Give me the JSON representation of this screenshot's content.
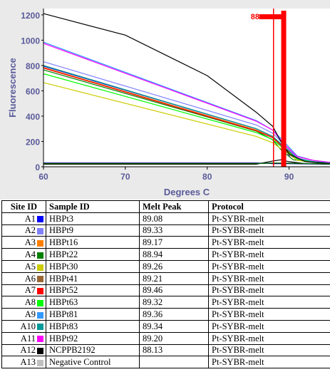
{
  "chart_data": {
    "type": "line",
    "title": "",
    "xlabel": "Degrees C",
    "ylabel": "Fluorescence",
    "xlim": [
      60,
      95
    ],
    "ylim": [
      0,
      1250
    ],
    "xticks": [
      60,
      70,
      80,
      90
    ],
    "yticks": [
      0,
      200,
      400,
      600,
      800,
      1000,
      1200
    ],
    "marker_label": "88",
    "marker_color": "#ff0000",
    "marker_lines": [
      88.1,
      89.3
    ],
    "background": "#eaeaea",
    "series": [
      {
        "color": "#0000ff",
        "values": [
          [
            60,
            795
          ],
          [
            86,
            300
          ],
          [
            88,
            240
          ],
          [
            89,
            170
          ],
          [
            90,
            90
          ],
          [
            92,
            45
          ],
          [
            95,
            25
          ]
        ]
      },
      {
        "color": "#8080ff",
        "values": [
          [
            60,
            830
          ],
          [
            86,
            330
          ],
          [
            88,
            265
          ],
          [
            89.5,
            170
          ],
          [
            91,
            70
          ],
          [
            93,
            40
          ],
          [
            95,
            30
          ]
        ]
      },
      {
        "color": "#ff8000",
        "values": [
          [
            60,
            785
          ],
          [
            86,
            290
          ],
          [
            88,
            232
          ],
          [
            89.3,
            140
          ],
          [
            91,
            60
          ],
          [
            93,
            40
          ],
          [
            95,
            30
          ]
        ]
      },
      {
        "color": "#008000",
        "values": [
          [
            60,
            765
          ],
          [
            86,
            282
          ],
          [
            88,
            212
          ],
          [
            89,
            135
          ],
          [
            90.5,
            55
          ],
          [
            93,
            35
          ],
          [
            95,
            25
          ]
        ]
      },
      {
        "color": "#cccc00",
        "values": [
          [
            60,
            665
          ],
          [
            86,
            240
          ],
          [
            88,
            190
          ],
          [
            89.5,
            120
          ],
          [
            91,
            50
          ],
          [
            93,
            35
          ],
          [
            95,
            25
          ]
        ]
      },
      {
        "color": "#996633",
        "values": [
          [
            60,
            800
          ],
          [
            86,
            300
          ],
          [
            88,
            240
          ],
          [
            89.3,
            155
          ],
          [
            91,
            60
          ],
          [
            93,
            40
          ],
          [
            95,
            30
          ]
        ]
      },
      {
        "color": "#ff0000",
        "values": [
          [
            60,
            780
          ],
          [
            86,
            285
          ],
          [
            88,
            230
          ],
          [
            89.5,
            150
          ],
          [
            91,
            60
          ],
          [
            93,
            40
          ],
          [
            95,
            30
          ]
        ]
      },
      {
        "color": "#00ff00",
        "values": [
          [
            60,
            735
          ],
          [
            86,
            270
          ],
          [
            88,
            215
          ],
          [
            89.4,
            140
          ],
          [
            91,
            60
          ],
          [
            93,
            40
          ],
          [
            95,
            30
          ]
        ]
      },
      {
        "color": "#3399ff",
        "values": [
          [
            60,
            985
          ],
          [
            86,
            365
          ],
          [
            88,
            290
          ],
          [
            89.5,
            190
          ],
          [
            91,
            85
          ],
          [
            93,
            50
          ],
          [
            95,
            35
          ]
        ]
      },
      {
        "color": "#009999",
        "values": [
          [
            60,
            800
          ],
          [
            86,
            300
          ],
          [
            88,
            240
          ],
          [
            89.4,
            160
          ],
          [
            91,
            65
          ],
          [
            93,
            40
          ],
          [
            95,
            30
          ]
        ]
      },
      {
        "color": "#ff00ff",
        "values": [
          [
            60,
            975
          ],
          [
            86,
            360
          ],
          [
            88,
            290
          ],
          [
            89.3,
            185
          ],
          [
            91,
            80
          ],
          [
            93,
            50
          ],
          [
            95,
            35
          ]
        ]
      },
      {
        "color": "#000000",
        "values": [
          [
            60,
            1210
          ],
          [
            70,
            1040
          ],
          [
            80,
            720
          ],
          [
            86,
            430
          ],
          [
            88,
            320
          ],
          [
            89,
            200
          ],
          [
            90,
            100
          ],
          [
            92,
            40
          ],
          [
            95,
            25
          ]
        ]
      },
      {
        "color": "#000000",
        "values": [
          [
            60,
            20
          ],
          [
            86,
            20
          ],
          [
            88,
            45
          ],
          [
            89,
            55
          ],
          [
            90,
            40
          ],
          [
            92,
            25
          ],
          [
            95,
            20
          ]
        ]
      },
      {
        "color": "#000080",
        "values": [
          [
            60,
            30
          ],
          [
            86,
            30
          ],
          [
            88,
            25
          ],
          [
            90,
            25
          ],
          [
            95,
            20
          ]
        ]
      },
      {
        "color": "#006600",
        "values": [
          [
            60,
            25
          ],
          [
            86,
            25
          ],
          [
            88,
            30
          ],
          [
            90,
            28
          ],
          [
            95,
            22
          ]
        ]
      }
    ]
  },
  "table": {
    "headers": [
      "Site ID",
      "Sample ID",
      "Melt Peak",
      "Protocol"
    ],
    "rows": [
      {
        "site": "A1",
        "color": "#0000ff",
        "sample": "HBPt3",
        "peak": "89.08",
        "protocol": "Pt-SYBR-melt"
      },
      {
        "site": "A2",
        "color": "#8080ff",
        "sample": "HBPt9",
        "peak": "89.33",
        "protocol": "Pt-SYBR-melt"
      },
      {
        "site": "A3",
        "color": "#ff8000",
        "sample": "HBPt16",
        "peak": "89.17",
        "protocol": "Pt-SYBR-melt"
      },
      {
        "site": "A4",
        "color": "#008000",
        "sample": "HBPt22",
        "peak": "88.94",
        "protocol": "Pt-SYBR-melt"
      },
      {
        "site": "A5",
        "color": "#cccc00",
        "sample": "HBPt30",
        "peak": "89.26",
        "protocol": "Pt-SYBR-melt"
      },
      {
        "site": "A6",
        "color": "#996633",
        "sample": "HBPt41",
        "peak": "89.21",
        "protocol": "Pt-SYBR-melt"
      },
      {
        "site": "A7",
        "color": "#ff0000",
        "sample": "HBPt52",
        "peak": "89.46",
        "protocol": "Pt-SYBR-melt"
      },
      {
        "site": "A8",
        "color": "#00ff00",
        "sample": "HBPt63",
        "peak": "89.32",
        "protocol": "Pt-SYBR-melt"
      },
      {
        "site": "A9",
        "color": "#3399ff",
        "sample": "HBPt81",
        "peak": "89.36",
        "protocol": "Pt-SYBR-melt"
      },
      {
        "site": "A10",
        "color": "#009999",
        "sample": "HBPt83",
        "peak": "89.34",
        "protocol": "Pt-SYBR-melt"
      },
      {
        "site": "A11",
        "color": "#ff00ff",
        "sample": "HBPt92",
        "peak": "89.20",
        "protocol": "Pt-SYBR-melt"
      },
      {
        "site": "A12",
        "color": "#000000",
        "sample": "NCPPB2192",
        "peak": "88.13",
        "protocol": "Pt-SYBR-melt"
      },
      {
        "site": "A13",
        "color": "#c0c0c0",
        "sample": "Negative Control",
        "peak": "",
        "protocol": "Pt-SYBR-melt"
      }
    ]
  }
}
